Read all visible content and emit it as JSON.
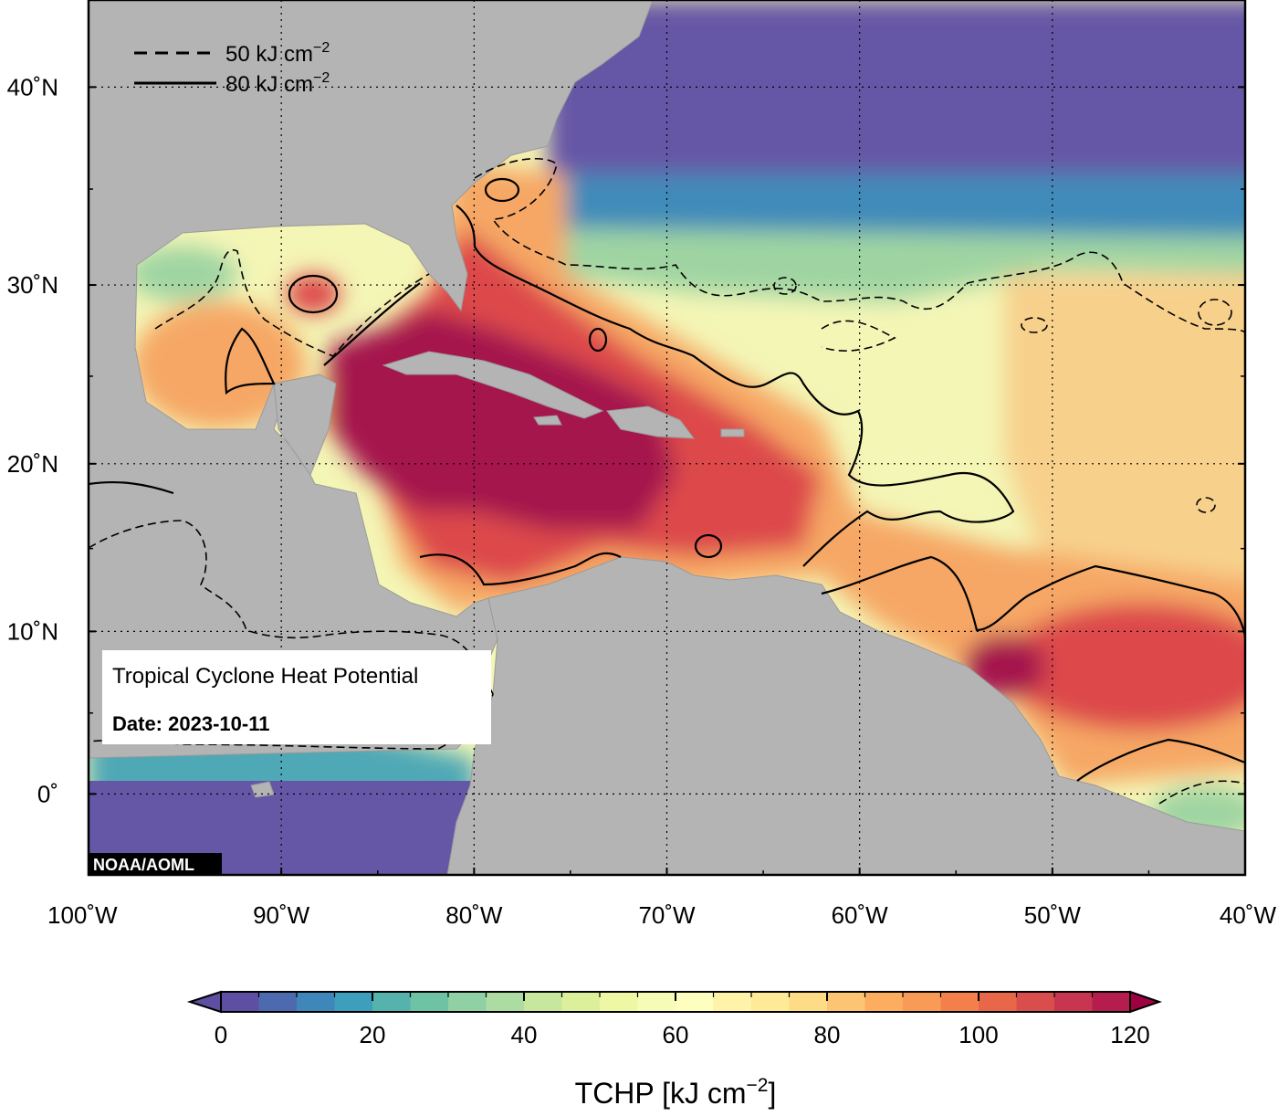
{
  "map": {
    "title": "Tropical Cyclone Heat Potential",
    "date_label": "Date: 2023-10-11",
    "credit": "NOAA/AOML",
    "extent": {
      "lon_min": -100,
      "lon_max": -40,
      "lat_min": -5,
      "lat_max": 44
    },
    "lat_ticks": [
      {
        "value": 40,
        "label": "40˚N"
      },
      {
        "value": 30,
        "label": "30˚N"
      },
      {
        "value": 20,
        "label": "20˚N"
      },
      {
        "value": 10,
        "label": "10˚N"
      },
      {
        "value": 0,
        "label": "0˚"
      }
    ],
    "lon_ticks": [
      {
        "value": -100,
        "label": "100˚W"
      },
      {
        "value": -90,
        "label": "90˚W"
      },
      {
        "value": -80,
        "label": "80˚W"
      },
      {
        "value": -70,
        "label": "70˚W"
      },
      {
        "value": -60,
        "label": "60˚W"
      },
      {
        "value": -50,
        "label": "50˚W"
      },
      {
        "value": -40,
        "label": "40˚W"
      }
    ],
    "legend": [
      {
        "style": "dashed",
        "label": "50 kJ cm",
        "superscript": "−2"
      },
      {
        "style": "solid",
        "label": "80 kJ cm",
        "superscript": "−2"
      }
    ],
    "colors": {
      "land": "#b4b4b4",
      "cold": "#6657a6",
      "cool": "#3f8bb9",
      "green": "#9fd4a2",
      "yellow": "#f4f6b6",
      "orange": "#f6a765",
      "red": "#dd4a4b",
      "maroon": "#a5144e"
    }
  },
  "colorbar": {
    "ticks": [
      0,
      20,
      40,
      60,
      80,
      100,
      120
    ],
    "tick_labels": [
      "0",
      "20",
      "40",
      "60",
      "80",
      "100",
      "120"
    ],
    "min": 0,
    "max": 120,
    "step": 5,
    "label": "TCHP [kJ cm",
    "label_superscript": "−2",
    "label_suffix": "]",
    "colors": [
      "#5e4fa2",
      "#4e6aae",
      "#3f86ba",
      "#3d9fbb",
      "#55b2ad",
      "#6ec3a4",
      "#8fd1a4",
      "#acdca2",
      "#c6e79d",
      "#dcf09c",
      "#eef7a4",
      "#f6fbb5",
      "#fefebe",
      "#fff3aa",
      "#feea97",
      "#fedb85",
      "#fdc474",
      "#fdad60",
      "#f89b57",
      "#f3804b",
      "#e86748",
      "#d94e4d",
      "#c73550",
      "#b41d4e"
    ]
  }
}
